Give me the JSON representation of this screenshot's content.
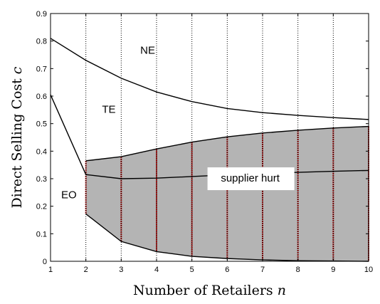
{
  "chart_data": {
    "type": "line",
    "title": "",
    "xlabel": "Number of Retailers",
    "xlabel_var": "n",
    "ylabel": "Direct Selling Cost",
    "ylabel_var": "c",
    "xlim": [
      1,
      10
    ],
    "ylim": [
      0,
      0.9
    ],
    "xticks": [
      "1",
      "2",
      "3",
      "4",
      "5",
      "6",
      "7",
      "8",
      "9",
      "10"
    ],
    "yticks": [
      "0",
      "0.1",
      "0.2",
      "0.3",
      "0.4",
      "0.5",
      "0.6",
      "0.7",
      "0.8",
      "0.9"
    ],
    "grid": "vertical-dotted",
    "x": [
      1,
      2,
      3,
      4,
      5,
      6,
      7,
      8,
      9,
      10
    ],
    "series": [
      {
        "values": [
          0.81,
          0.73,
          0.665,
          0.615,
          0.58,
          0.555,
          0.54,
          0.53,
          0.522,
          0.515
        ]
      },
      {
        "values": [
          0.605,
          0.315,
          0.3,
          0.302,
          0.308,
          0.314,
          0.319,
          0.323,
          0.327,
          0.33
        ]
      },
      {
        "values": [
          null,
          0.365,
          0.38,
          0.408,
          0.433,
          0.452,
          0.466,
          0.476,
          0.484,
          0.49
        ]
      },
      {
        "values": [
          null,
          0.172,
          0.072,
          0.035,
          0.018,
          0.01,
          0.005,
          0.002,
          0.001,
          0.0
        ]
      }
    ],
    "shaded_region": {
      "x": [
        2,
        3,
        4,
        5,
        6,
        7,
        8,
        9,
        10
      ],
      "upper": [
        0.365,
        0.38,
        0.408,
        0.433,
        0.452,
        0.466,
        0.476,
        0.484,
        0.49
      ],
      "lower": [
        0.172,
        0.072,
        0.035,
        0.018,
        0.01,
        0.005,
        0.002,
        0.001,
        0.0
      ],
      "fill": "#b4b4b4",
      "bar_color": "#990000"
    },
    "annotations": [
      {
        "text": "NE",
        "x": 3.75,
        "y": 0.77
      },
      {
        "text": "TE",
        "x": 2.65,
        "y": 0.555
      },
      {
        "text": "EO",
        "x": 1.52,
        "y": 0.245
      },
      {
        "text": "supplier hurt",
        "x": 6.65,
        "y": 0.305
      }
    ]
  }
}
